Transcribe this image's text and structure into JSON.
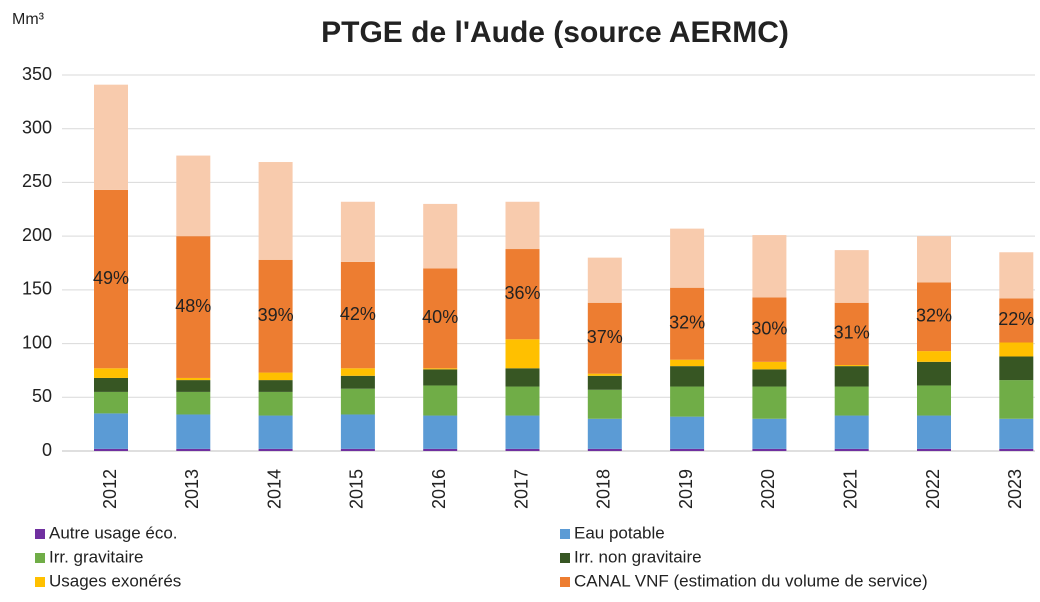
{
  "chart_data": {
    "type": "stacked_bar",
    "title": "PTGE de l'Aude (source AERMC)",
    "y_label": "Mm³",
    "categories": [
      "2012",
      "2013",
      "2014",
      "2015",
      "2016",
      "2017",
      "2018",
      "2019",
      "2020",
      "2021",
      "2022",
      "2023"
    ],
    "series": [
      {
        "name": "Autre usage éco.",
        "color": "#7030a0",
        "values": [
          2,
          2,
          2,
          2,
          2,
          2,
          2,
          2,
          2,
          2,
          2,
          2
        ]
      },
      {
        "name": "Eau potable",
        "color": "#5b9bd5",
        "values": [
          33,
          32,
          31,
          32,
          31,
          31,
          28,
          30,
          28,
          31,
          31,
          28
        ]
      },
      {
        "name": "Irr. gravitaire",
        "color": "#70ad47",
        "values": [
          20,
          21,
          22,
          24,
          28,
          27,
          27,
          28,
          30,
          27,
          28,
          36
        ]
      },
      {
        "name": "Irr. non gravitaire",
        "color": "#375623",
        "values": [
          13,
          11,
          11,
          12,
          15,
          17,
          13,
          19,
          16,
          19,
          22,
          22
        ]
      },
      {
        "name": "Usages exonérés",
        "color": "#ffc000",
        "values": [
          9,
          2,
          7,
          7,
          1,
          27,
          2,
          6,
          7,
          1,
          10,
          13
        ]
      },
      {
        "name": "CANAL VNF (estimation du volume de service)",
        "color": "#ed7d31",
        "values": [
          166,
          132,
          105,
          99,
          93,
          84,
          66,
          67,
          60,
          58,
          64,
          41
        ]
      },
      {
        "color": "#f8cbad",
        "values": [
          98,
          75,
          91,
          56,
          60,
          44,
          42,
          55,
          58,
          49,
          43,
          43
        ]
      }
    ],
    "annotations": [
      "49%",
      "48%",
      "39%",
      "42%",
      "40%",
      "36%",
      "37%",
      "32%",
      "30%",
      "31%",
      "32%",
      "22%"
    ],
    "ylim": [
      0,
      350
    ],
    "yticks": [
      0,
      50,
      100,
      150,
      200,
      250,
      300,
      350
    ],
    "grid": true
  }
}
